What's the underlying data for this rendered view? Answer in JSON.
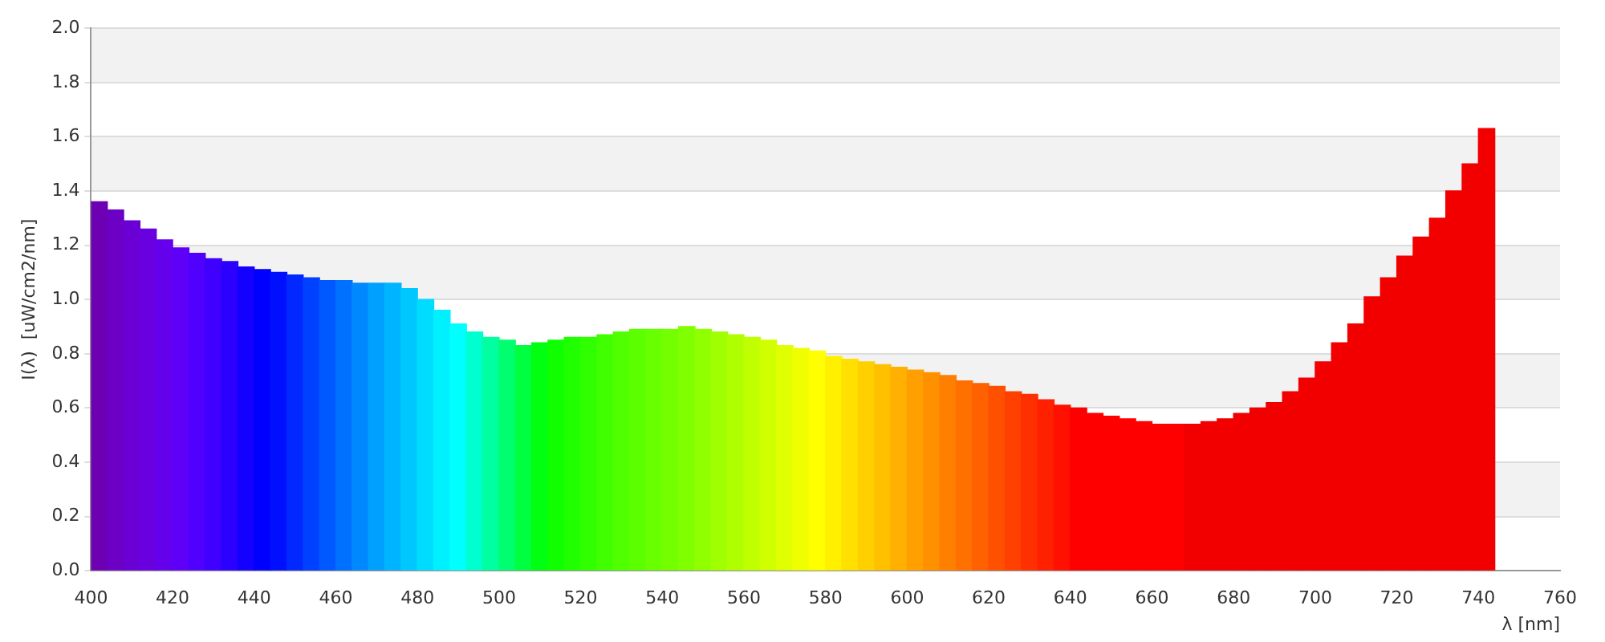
{
  "chart_data": {
    "type": "bar",
    "xlabel": "λ [nm]",
    "ylabel": "I(λ)  [uW/cm2/nm]",
    "x": [
      402,
      406,
      410,
      414,
      418,
      422,
      426,
      430,
      434,
      438,
      442,
      446,
      450,
      454,
      458,
      462,
      466,
      470,
      474,
      478,
      482,
      486,
      490,
      494,
      498,
      502,
      506,
      510,
      514,
      518,
      522,
      526,
      530,
      534,
      538,
      542,
      546,
      550,
      554,
      558,
      562,
      566,
      570,
      574,
      578,
      582,
      586,
      590,
      594,
      598,
      602,
      606,
      610,
      614,
      618,
      622,
      626,
      630,
      634,
      638,
      642,
      646,
      650,
      654,
      658,
      662,
      666,
      670,
      674,
      678,
      682,
      686,
      690,
      694,
      698,
      702,
      706,
      710,
      714,
      718,
      722,
      726,
      730,
      734,
      738,
      742
    ],
    "values": [
      1.36,
      1.33,
      1.29,
      1.26,
      1.22,
      1.19,
      1.17,
      1.15,
      1.14,
      1.12,
      1.11,
      1.1,
      1.09,
      1.08,
      1.07,
      1.07,
      1.06,
      1.06,
      1.06,
      1.04,
      1.0,
      0.96,
      0.91,
      0.88,
      0.86,
      0.85,
      0.83,
      0.84,
      0.85,
      0.86,
      0.86,
      0.87,
      0.88,
      0.89,
      0.89,
      0.89,
      0.9,
      0.89,
      0.88,
      0.87,
      0.86,
      0.85,
      0.83,
      0.82,
      0.81,
      0.79,
      0.78,
      0.77,
      0.76,
      0.75,
      0.74,
      0.73,
      0.72,
      0.7,
      0.69,
      0.68,
      0.66,
      0.65,
      0.63,
      0.61,
      0.6,
      0.58,
      0.57,
      0.56,
      0.55,
      0.54,
      0.54,
      0.54,
      0.55,
      0.56,
      0.58,
      0.6,
      0.62,
      0.66,
      0.71,
      0.77,
      0.84,
      0.91,
      1.01,
      1.08,
      1.16,
      1.23,
      1.3,
      1.4,
      1.5,
      1.63
    ],
    "colors": [
      "#6e00b4",
      "#6c00c4",
      "#6a00d4",
      "#6800e0",
      "#6400ec",
      "#5e00f8",
      "#5000ff",
      "#4000ff",
      "#2c00ff",
      "#1400ff",
      "#0000ff",
      "#0010ff",
      "#0028ff",
      "#0040ff",
      "#0058ff",
      "#0070ff",
      "#0088ff",
      "#00a0ff",
      "#00b4ff",
      "#00c8ff",
      "#00dcff",
      "#00f0ff",
      "#00ffff",
      "#00ffd0",
      "#00ffa0",
      "#00ff70",
      "#00ff40",
      "#00ff10",
      "#10ff00",
      "#20ff00",
      "#30ff00",
      "#40ff00",
      "#50ff00",
      "#5cff00",
      "#68ff00",
      "#74ff00",
      "#80ff00",
      "#90ff00",
      "#a0ff00",
      "#b0ff00",
      "#c0ff00",
      "#d0ff00",
      "#e0ff00",
      "#f0ff00",
      "#ffff00",
      "#fff000",
      "#ffe000",
      "#ffd000",
      "#ffc000",
      "#ffb000",
      "#ffa000",
      "#ff9000",
      "#ff8000",
      "#ff7000",
      "#ff6000",
      "#ff5000",
      "#ff4000",
      "#ff3000",
      "#ff2000",
      "#ff1000",
      "#ff0000",
      "#ff0000",
      "#ff0000",
      "#ff0000",
      "#ff0000",
      "#ff0000",
      "#ff0000",
      "#f20000",
      "#f20000",
      "#f20000",
      "#f20000",
      "#f20000",
      "#f20000",
      "#f20000",
      "#f20000",
      "#f20000",
      "#f20000",
      "#f20000",
      "#f20000",
      "#f20000",
      "#f20000",
      "#f20000",
      "#f20000",
      "#f20000",
      "#f20000",
      "#f20000"
    ],
    "xlim": [
      400,
      760
    ],
    "xticks": [
      400,
      420,
      440,
      460,
      480,
      500,
      520,
      540,
      560,
      580,
      600,
      620,
      640,
      660,
      680,
      700,
      720,
      740,
      760
    ],
    "ylim": [
      0,
      2.0
    ],
    "yticks": [
      {
        "value": 0,
        "label": "0.0"
      },
      0.2,
      0.4,
      0.6,
      0.8,
      {
        "value": 1,
        "label": "1.0"
      },
      1.2,
      1.4,
      1.6,
      1.8,
      {
        "value": 2,
        "label": "2.0"
      }
    ],
    "grid": "y",
    "legend": false
  }
}
